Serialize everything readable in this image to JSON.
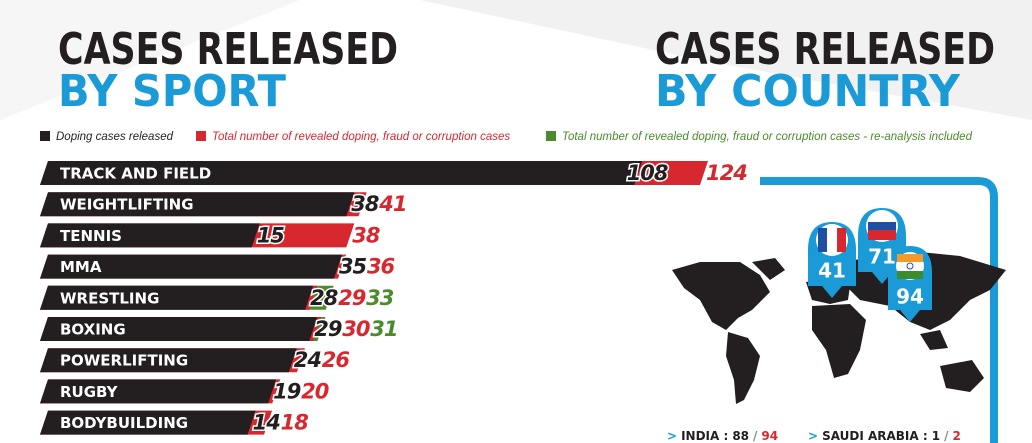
{
  "chart_data": {
    "type": "bar",
    "orientation": "horizontal",
    "title": [
      "CASES RELEASED",
      "BY SPORT"
    ],
    "categories": [
      "TRACK AND FIELD",
      "WEIGHTLIFTING",
      "TENNIS",
      "MMA",
      "WRESTLING",
      "BOXING",
      "POWERLIFTING",
      "RUGBY",
      "BODYBUILDING"
    ],
    "series": [
      {
        "name": "Doping cases released",
        "color": "#231f20",
        "values": [
          108,
          38,
          15,
          35,
          28,
          29,
          24,
          19,
          14
        ]
      },
      {
        "name": "Total number of revealed doping, fraud or corruption cases",
        "color": "#d7282f",
        "values": [
          124,
          41,
          38,
          36,
          29,
          30,
          26,
          20,
          18
        ]
      },
      {
        "name": "Total number of revealed doping, fraud or corruption cases - re-analysis included",
        "color": "#4b8b2b",
        "values": [
          null,
          null,
          null,
          null,
          33,
          31,
          null,
          null,
          null
        ]
      }
    ],
    "legend": "top"
  },
  "country_panel": {
    "title": [
      "CASES RELEASED",
      "BY COUNTRY"
    ],
    "pins": [
      41,
      71,
      94
    ],
    "summary": [
      {
        "name": "INDIA",
        "released": 88,
        "total": 94
      },
      {
        "name": "SAUDI ARABIA",
        "released": 1,
        "total": 2
      }
    ],
    "separators": [
      ">",
      ":",
      "/"
    ]
  }
}
